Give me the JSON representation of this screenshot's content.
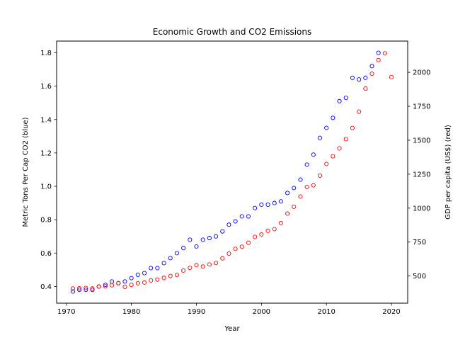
{
  "chart_data": {
    "type": "scatter",
    "title": "Economic Growth and CO2 Emissions",
    "xlabel": "Year",
    "ylabel_left": "Metric Tons Per Cap CO2 (blue)",
    "ylabel_right": "GDP per capita (US$) (red)",
    "xlim": [
      1968.5,
      2022.5
    ],
    "ylim_left": [
      0.3,
      1.87
    ],
    "ylim_right": [
      300,
      2230
    ],
    "x_ticks": [
      1970,
      1980,
      1990,
      2000,
      2010,
      2020
    ],
    "y_left_ticks": [
      0.4,
      0.6,
      0.8,
      1.0,
      1.2,
      1.4,
      1.6,
      1.8
    ],
    "y_left_tick_labels": [
      "0.4",
      "0.6",
      "0.8",
      "1.0",
      "1.2",
      "1.4",
      "1.6",
      "1.8"
    ],
    "y_right_ticks": [
      500,
      750,
      1000,
      1250,
      1500,
      1750,
      2000
    ],
    "y_right_tick_labels": [
      "500",
      "750",
      "1000",
      "1250",
      "1500",
      "1750",
      "2000"
    ],
    "series": [
      {
        "name": "CO2 per capita",
        "axis": "left",
        "color": "#0000ff",
        "x": [
          1971,
          1972,
          1973,
          1974,
          1975,
          1976,
          1977,
          1978,
          1979,
          1980,
          1981,
          1982,
          1983,
          1984,
          1985,
          1986,
          1987,
          1988,
          1989,
          1990,
          1991,
          1992,
          1993,
          1994,
          1995,
          1996,
          1997,
          1998,
          1999,
          2000,
          2001,
          2002,
          2003,
          2004,
          2005,
          2006,
          2007,
          2008,
          2009,
          2010,
          2011,
          2012,
          2013,
          2014,
          2015,
          2016,
          2017,
          2018
        ],
        "y": [
          0.37,
          0.38,
          0.38,
          0.38,
          0.4,
          0.41,
          0.43,
          0.42,
          0.43,
          0.45,
          0.47,
          0.48,
          0.51,
          0.51,
          0.54,
          0.57,
          0.6,
          0.63,
          0.68,
          0.64,
          0.68,
          0.69,
          0.7,
          0.73,
          0.77,
          0.79,
          0.82,
          0.82,
          0.87,
          0.89,
          0.89,
          0.9,
          0.91,
          0.96,
          0.99,
          1.04,
          1.13,
          1.19,
          1.29,
          1.35,
          1.41,
          1.51,
          1.53,
          1.65,
          1.64,
          1.65,
          1.72,
          1.8
        ]
      },
      {
        "name": "GDP per capita",
        "axis": "right",
        "color": "#ff0000",
        "x": [
          1971,
          1972,
          1973,
          1974,
          1975,
          1976,
          1977,
          1978,
          1979,
          1980,
          1981,
          1982,
          1983,
          1984,
          1985,
          1986,
          1987,
          1988,
          1989,
          1990,
          1991,
          1992,
          1993,
          1994,
          1995,
          1996,
          1997,
          1998,
          1999,
          2000,
          2001,
          2002,
          2003,
          2004,
          2005,
          2006,
          2007,
          2008,
          2009,
          2010,
          2011,
          2012,
          2013,
          2014,
          2015,
          2016,
          2017,
          2018,
          2019,
          2020
        ],
        "y": [
          408,
          410,
          412,
          408,
          422,
          425,
          432,
          447,
          420,
          435,
          447,
          452,
          468,
          474,
          486,
          500,
          508,
          540,
          560,
          580,
          570,
          585,
          596,
          630,
          665,
          700,
          716,
          745,
          788,
          806,
          833,
          845,
          890,
          960,
          1010,
          1085,
          1156,
          1168,
          1240,
          1325,
          1382,
          1440,
          1508,
          1590,
          1710,
          1880,
          1990,
          2090,
          2140,
          1965
        ]
      }
    ]
  }
}
